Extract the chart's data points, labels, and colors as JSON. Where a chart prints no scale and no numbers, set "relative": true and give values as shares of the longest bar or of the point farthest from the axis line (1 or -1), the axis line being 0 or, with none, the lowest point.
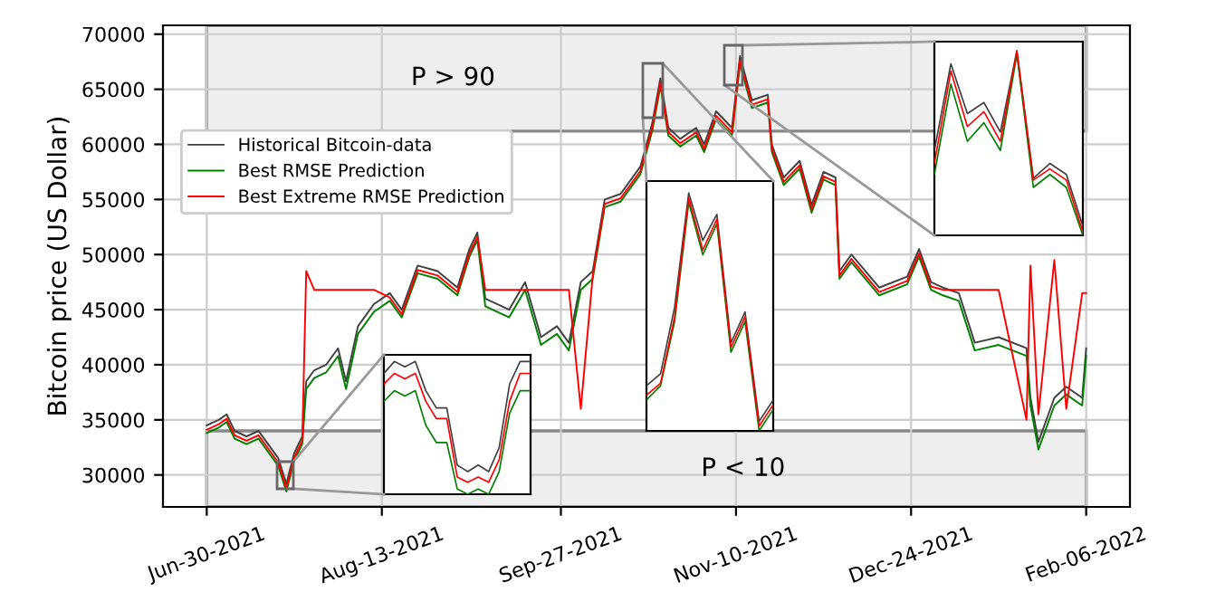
{
  "chart_data": [
    {
      "type": "line",
      "ylabel": "Bitcoin price (US Dollar)",
      "xlim": [
        "2021-06-19",
        "2022-02-17"
      ],
      "ylim": [
        27100,
        70800
      ],
      "xticks": [
        {
          "value": "2021-06-30",
          "label": "Jun-30-2021"
        },
        {
          "value": "2021-08-13",
          "label": "Aug-13-2021"
        },
        {
          "value": "2021-09-27",
          "label": "Sep-27-2021"
        },
        {
          "value": "2021-11-10",
          "label": "Nov-10-2021"
        },
        {
          "value": "2021-12-24",
          "label": "Dec-24-2021"
        },
        {
          "value": "2022-02-06",
          "label": "Feb-06-2022"
        }
      ],
      "yticks": [
        30000,
        35000,
        40000,
        45000,
        50000,
        55000,
        60000,
        65000,
        70000
      ],
      "grid": true,
      "legend": "top left",
      "x": [
        "2021-06-30",
        "2021-07-03",
        "2021-07-05",
        "2021-07-07",
        "2021-07-10",
        "2021-07-13",
        "2021-07-15",
        "2021-07-18",
        "2021-07-20",
        "2021-07-22",
        "2021-07-24",
        "2021-07-25",
        "2021-07-27",
        "2021-07-30",
        "2021-08-02",
        "2021-08-04",
        "2021-08-07",
        "2021-08-11",
        "2021-08-15",
        "2021-08-18",
        "2021-08-22",
        "2021-08-27",
        "2021-09-01",
        "2021-09-04",
        "2021-09-06",
        "2021-09-08",
        "2021-09-14",
        "2021-09-18",
        "2021-09-22",
        "2021-09-26",
        "2021-09-29",
        "2021-10-02",
        "2021-10-05",
        "2021-10-08",
        "2021-10-12",
        "2021-10-17",
        "2021-10-20",
        "2021-10-22",
        "2021-10-24",
        "2021-10-27",
        "2021-10-31",
        "2021-11-02",
        "2021-11-05",
        "2021-11-09",
        "2021-11-11",
        "2021-11-14",
        "2021-11-18",
        "2021-11-19",
        "2021-11-22",
        "2021-11-26",
        "2021-11-29",
        "2021-12-02",
        "2021-12-05",
        "2021-12-06",
        "2021-12-09",
        "2021-12-16",
        "2021-12-23",
        "2021-12-26",
        "2021-12-29",
        "2022-01-01",
        "2022-01-05",
        "2022-01-09",
        "2022-01-15",
        "2022-01-22",
        "2022-01-23",
        "2022-01-25",
        "2022-01-29",
        "2022-02-01",
        "2022-02-05",
        "2022-02-06"
      ],
      "series": [
        {
          "name": "Historical Bitcoin-data",
          "color": "#404040",
          "values": [
            34500,
            35000,
            35500,
            34000,
            33500,
            34000,
            33000,
            31500,
            29200,
            32000,
            33500,
            38500,
            39500,
            40000,
            41500,
            38500,
            43500,
            45500,
            46500,
            45000,
            49000,
            48500,
            47000,
            50500,
            52000,
            46000,
            45000,
            47500,
            42500,
            43500,
            42000,
            47500,
            48500,
            55000,
            55500,
            58000,
            62000,
            66000,
            61500,
            60500,
            61500,
            60000,
            63000,
            61500,
            68000,
            64000,
            64500,
            60000,
            57000,
            58500,
            54500,
            57500,
            57000,
            48500,
            50000,
            47000,
            48000,
            50500,
            47500,
            47000,
            46500,
            42000,
            42500,
            41500,
            37000,
            33000,
            37000,
            38000,
            37000,
            41500
          ]
        },
        {
          "name": "Best RMSE Prediction",
          "color": "#008000",
          "values": [
            33800,
            34300,
            34800,
            33300,
            32800,
            33300,
            32300,
            30800,
            28500,
            31300,
            32800,
            37800,
            38800,
            39300,
            40800,
            37800,
            42800,
            44800,
            45800,
            44300,
            48300,
            47800,
            46300,
            49800,
            51300,
            45300,
            44300,
            46800,
            41800,
            42800,
            41300,
            46800,
            47800,
            54300,
            54800,
            57300,
            61300,
            65300,
            60800,
            59800,
            60800,
            59300,
            62300,
            60800,
            67300,
            63300,
            63800,
            59300,
            56300,
            57800,
            53800,
            56800,
            56300,
            47800,
            49300,
            46300,
            47300,
            49800,
            46800,
            46300,
            45800,
            41300,
            41800,
            40800,
            36300,
            32300,
            36300,
            37300,
            36300,
            40800
          ]
        },
        {
          "name": "Best Extreme RMSE Prediction",
          "color": "#ff0000",
          "values": [
            34100,
            34600,
            35100,
            33600,
            33100,
            33600,
            32600,
            31100,
            28800,
            31600,
            33100,
            48500,
            46800,
            46800,
            46800,
            46800,
            46800,
            46800,
            46100,
            44600,
            48600,
            48100,
            46600,
            50100,
            51600,
            46800,
            46800,
            46800,
            46800,
            46800,
            46800,
            36000,
            48100,
            54600,
            55100,
            57600,
            61600,
            65600,
            61100,
            60100,
            61100,
            59600,
            62600,
            61100,
            67600,
            63600,
            64100,
            59600,
            56600,
            58100,
            54100,
            57100,
            56600,
            48100,
            49600,
            46600,
            47600,
            50100,
            47100,
            46800,
            46800,
            46800,
            46800,
            35000,
            49000,
            35500,
            49500,
            36000,
            46500,
            46500
          ]
        }
      ],
      "bands": [
        {
          "axis": "y",
          "from": 61200,
          "to": 70800,
          "label": "P > 90",
          "color": "#eeeeee"
        },
        {
          "axis": "y",
          "from": 27100,
          "to": 34000,
          "label": "P < 10",
          "color": "#eeeeee"
        }
      ]
    },
    {
      "type": "line",
      "relative": true,
      "categories": [
        null,
        null,
        null,
        null,
        null,
        null,
        null,
        null,
        null,
        null,
        null,
        null,
        null,
        null,
        null
      ],
      "series": [
        {
          "color": "#404040",
          "values": [
            0.91,
            1,
            0.96,
            1,
            0.78,
            0.65,
            0.65,
            0.22,
            0.17,
            0.22,
            0.17,
            0.35,
            0.83,
            1,
            1
          ]
        },
        {
          "color": "#008000",
          "values": [
            0.7,
            0.78,
            0.74,
            0.78,
            0.52,
            0.39,
            0.39,
            0.04,
            0,
            0.04,
            0,
            0.17,
            0.61,
            0.78,
            0.78
          ]
        },
        {
          "color": "#ff0000",
          "values": [
            0.83,
            0.91,
            0.87,
            0.91,
            0.7,
            0.57,
            0.57,
            0.13,
            0.09,
            0.13,
            0.09,
            0.26,
            0.7,
            0.91,
            0.91
          ]
        }
      ]
    },
    {
      "type": "line",
      "relative": true,
      "categories": [
        null,
        null,
        null,
        null,
        null,
        null,
        null,
        null,
        null,
        null
      ],
      "series": [
        {
          "color": "#404040",
          "values": [
            0.19,
            0.24,
            0.52,
            1,
            0.8,
            0.91,
            0.37,
            0.5,
            0.04,
            0.13
          ]
        },
        {
          "color": "#008000",
          "values": [
            0.13,
            0.19,
            0.46,
            0.96,
            0.74,
            0.87,
            0.33,
            0.46,
            0,
            0.09
          ]
        },
        {
          "color": "#ff0000",
          "values": [
            0.15,
            0.2,
            0.48,
            0.98,
            0.76,
            0.89,
            0.35,
            0.48,
            0.02,
            0.11
          ]
        }
      ]
    },
    {
      "type": "line",
      "relative": true,
      "categories": [
        null,
        null,
        null,
        null,
        null,
        null,
        null,
        null,
        null,
        null
      ],
      "series": [
        {
          "color": "#404040",
          "values": [
            0.46,
            0.93,
            0.66,
            0.72,
            0.56,
            1,
            0.31,
            0.39,
            0.33,
            0.05
          ]
        },
        {
          "color": "#008000",
          "values": [
            0.33,
            0.82,
            0.51,
            0.61,
            0.46,
            0.98,
            0.26,
            0.33,
            0.26,
            0
          ]
        },
        {
          "color": "#ff0000",
          "values": [
            0.39,
            0.89,
            0.59,
            0.67,
            0.51,
            1,
            0.3,
            0.36,
            0.3,
            0.02
          ]
        }
      ]
    }
  ]
}
